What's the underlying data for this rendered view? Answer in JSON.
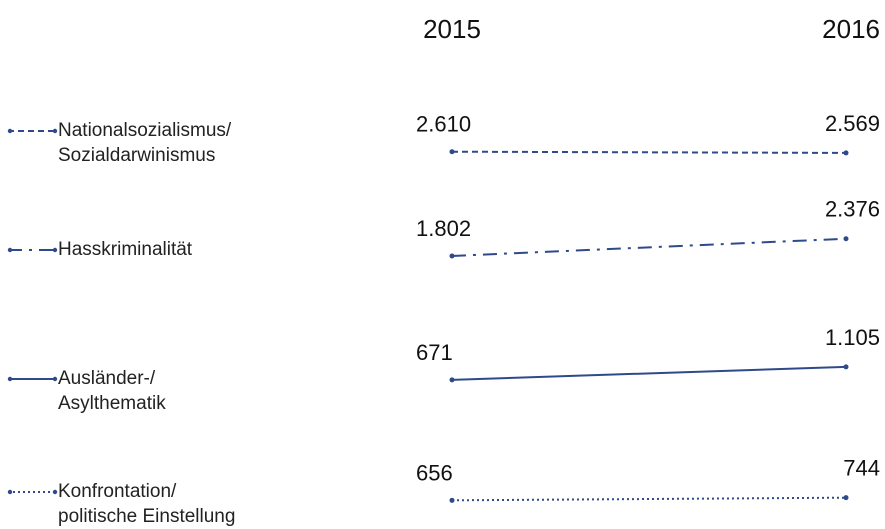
{
  "chart_data": {
    "type": "slope",
    "categories": [
      "2015",
      "2016"
    ],
    "series": [
      {
        "name": "Nationalsozialismus/\nSozialdarwinismus",
        "color": "#2f4a8a",
        "dash": "dashed",
        "values": [
          2610,
          2569
        ],
        "value_labels": [
          "2.610",
          "2.569"
        ]
      },
      {
        "name": "Hasskriminalität",
        "color": "#2f4a8a",
        "dash": "dashdot",
        "values": [
          1802,
          2376
        ],
        "value_labels": [
          "1.802",
          "2.376"
        ]
      },
      {
        "name": "Ausländer-/\nAsylthematik",
        "color": "#2f4a8a",
        "dash": "solid",
        "values": [
          671,
          1105
        ],
        "value_labels": [
          "671",
          "1.105"
        ]
      },
      {
        "name": "Konfrontation/\npolitische Einstellung",
        "color": "#2f4a8a",
        "dash": "dotted",
        "values": [
          656,
          744
        ],
        "value_labels": [
          "656",
          "744"
        ]
      }
    ]
  }
}
